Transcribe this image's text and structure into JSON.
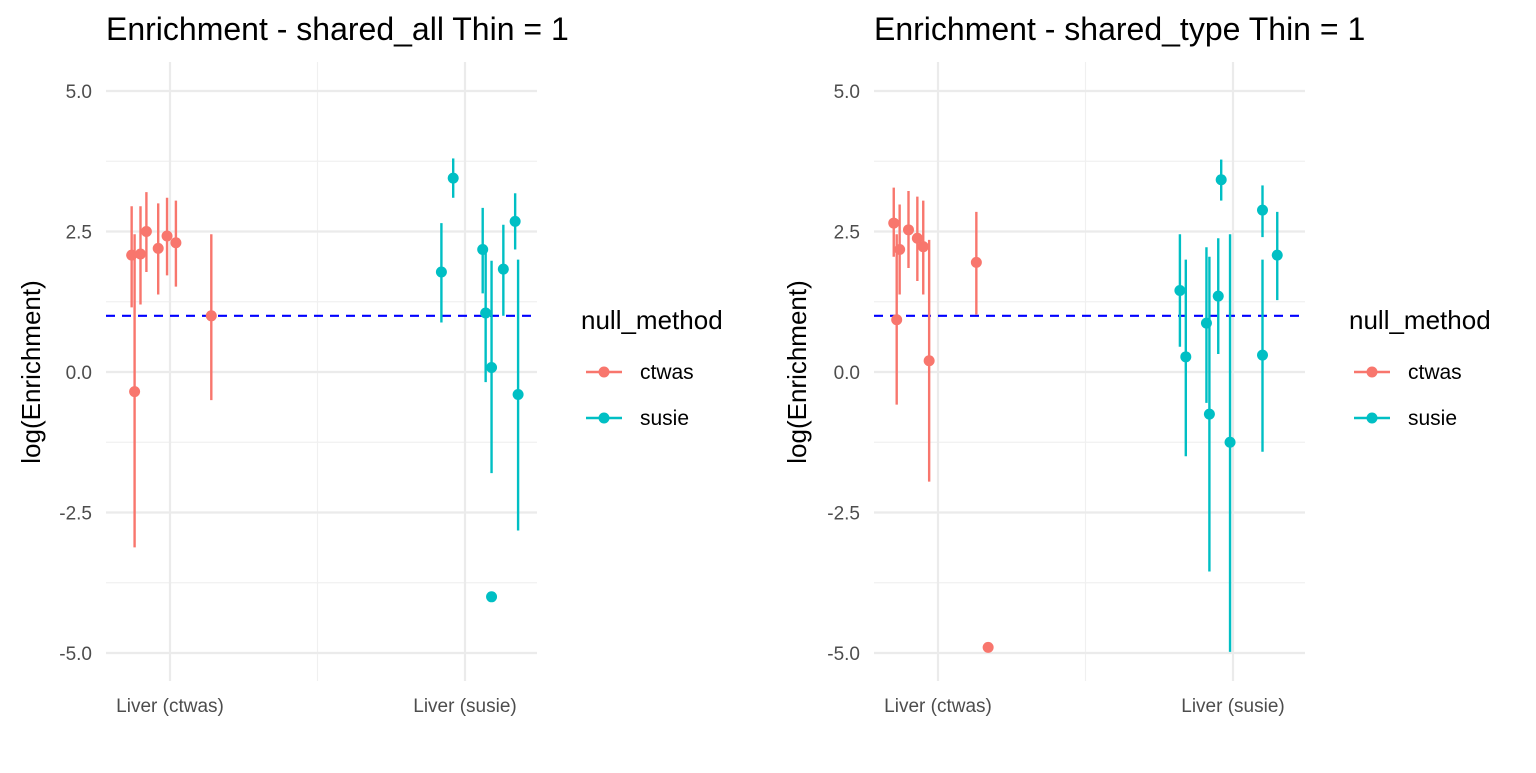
{
  "chart_data": [
    {
      "type": "scatter",
      "title": "Enrichment - shared_all Thin = 1",
      "xlabel": "",
      "ylabel": "log(Enrichment)",
      "categories": [
        "Liver (ctwas)",
        "Liver (susie)"
      ],
      "yticks": [
        "5.0",
        "2.5",
        "0.0",
        "-2.5",
        "-5.0"
      ],
      "ylim": [
        -5.5,
        5.5
      ],
      "reference_line": {
        "y": 1,
        "style": "dashed",
        "color": "#0000ff"
      },
      "grid": true,
      "legend": {
        "title": "null_method",
        "position": "right",
        "entries": [
          "ctwas",
          "susie"
        ]
      },
      "series": [
        {
          "name": "ctwas",
          "color": "#f8766d",
          "points": [
            {
              "x": 0.87,
              "y": 2.08,
              "lo": 1.15,
              "hi": 2.95
            },
            {
              "x": 0.88,
              "y": -0.35,
              "lo": -3.12,
              "hi": 2.45
            },
            {
              "x": 0.9,
              "y": 2.1,
              "lo": 1.2,
              "hi": 2.95
            },
            {
              "x": 0.92,
              "y": 2.5,
              "lo": 1.78,
              "hi": 3.2
            },
            {
              "x": 0.96,
              "y": 2.2,
              "lo": 1.38,
              "hi": 3.0
            },
            {
              "x": 0.99,
              "y": 2.42,
              "lo": 1.72,
              "hi": 3.1
            },
            {
              "x": 1.02,
              "y": 2.3,
              "lo": 1.52,
              "hi": 3.05
            },
            {
              "x": 1.14,
              "y": 1.0,
              "lo": -0.5,
              "hi": 2.45
            }
          ]
        },
        {
          "name": "susie",
          "color": "#00bfc4",
          "points": [
            {
              "x": 1.92,
              "y": 1.78,
              "lo": 0.88,
              "hi": 2.65
            },
            {
              "x": 1.96,
              "y": 3.45,
              "lo": 3.1,
              "hi": 3.8
            },
            {
              "x": 2.06,
              "y": 2.18,
              "lo": 1.4,
              "hi": 2.92
            },
            {
              "x": 2.07,
              "y": 1.05,
              "lo": -0.18,
              "hi": 2.22
            },
            {
              "x": 2.09,
              "y": 0.08,
              "lo": -1.8,
              "hi": 1.98
            },
            {
              "x": 2.09,
              "y": -4.0,
              "lo": -4.0,
              "hi": -4.0
            },
            {
              "x": 2.13,
              "y": 1.83,
              "lo": 1.0,
              "hi": 2.62
            },
            {
              "x": 2.17,
              "y": 2.68,
              "lo": 2.18,
              "hi": 3.18
            },
            {
              "x": 2.18,
              "y": -0.4,
              "lo": -2.82,
              "hi": 2.0
            }
          ]
        }
      ]
    },
    {
      "type": "scatter",
      "title": "Enrichment - shared_type Thin = 1",
      "xlabel": "",
      "ylabel": "log(Enrichment)",
      "categories": [
        "Liver (ctwas)",
        "Liver (susie)"
      ],
      "yticks": [
        "5.0",
        "2.5",
        "0.0",
        "-2.5",
        "-5.0"
      ],
      "ylim": [
        -5.5,
        5.5
      ],
      "reference_line": {
        "y": 1,
        "style": "dashed",
        "color": "#0000ff"
      },
      "grid": true,
      "legend": {
        "title": "null_method",
        "position": "right",
        "entries": [
          "ctwas",
          "susie"
        ]
      },
      "series": [
        {
          "name": "ctwas",
          "color": "#f8766d",
          "points": [
            {
              "x": 0.85,
              "y": 2.65,
              "lo": 2.05,
              "hi": 3.28
            },
            {
              "x": 0.86,
              "y": 0.93,
              "lo": -0.58,
              "hi": 2.45
            },
            {
              "x": 0.87,
              "y": 2.18,
              "lo": 1.38,
              "hi": 2.98
            },
            {
              "x": 0.9,
              "y": 2.53,
              "lo": 1.85,
              "hi": 3.22
            },
            {
              "x": 0.93,
              "y": 2.38,
              "lo": 1.62,
              "hi": 3.12
            },
            {
              "x": 0.95,
              "y": 2.23,
              "lo": 1.38,
              "hi": 3.05
            },
            {
              "x": 0.97,
              "y": 0.2,
              "lo": -1.95,
              "hi": 2.35
            },
            {
              "x": 1.13,
              "y": 1.95,
              "lo": 1.02,
              "hi": 2.85
            },
            {
              "x": 1.17,
              "y": -4.9,
              "lo": -4.9,
              "hi": -4.9
            }
          ]
        },
        {
          "name": "susie",
          "color": "#00bfc4",
          "points": [
            {
              "x": 1.82,
              "y": 1.45,
              "lo": 0.45,
              "hi": 2.45
            },
            {
              "x": 1.84,
              "y": 0.27,
              "lo": -1.5,
              "hi": 2.0
            },
            {
              "x": 1.91,
              "y": 0.87,
              "lo": -0.55,
              "hi": 2.22
            },
            {
              "x": 1.92,
              "y": -0.75,
              "lo": -3.55,
              "hi": 2.05
            },
            {
              "x": 1.95,
              "y": 1.35,
              "lo": 0.32,
              "hi": 2.38
            },
            {
              "x": 1.96,
              "y": 3.42,
              "lo": 3.05,
              "hi": 3.78
            },
            {
              "x": 1.99,
              "y": -1.25,
              "lo": -4.98,
              "hi": 2.45
            },
            {
              "x": 2.1,
              "y": 2.88,
              "lo": 2.4,
              "hi": 3.32
            },
            {
              "x": 2.1,
              "y": 0.3,
              "lo": -1.42,
              "hi": 2.0
            },
            {
              "x": 2.15,
              "y": 2.08,
              "lo": 1.28,
              "hi": 2.85
            }
          ]
        }
      ]
    }
  ]
}
